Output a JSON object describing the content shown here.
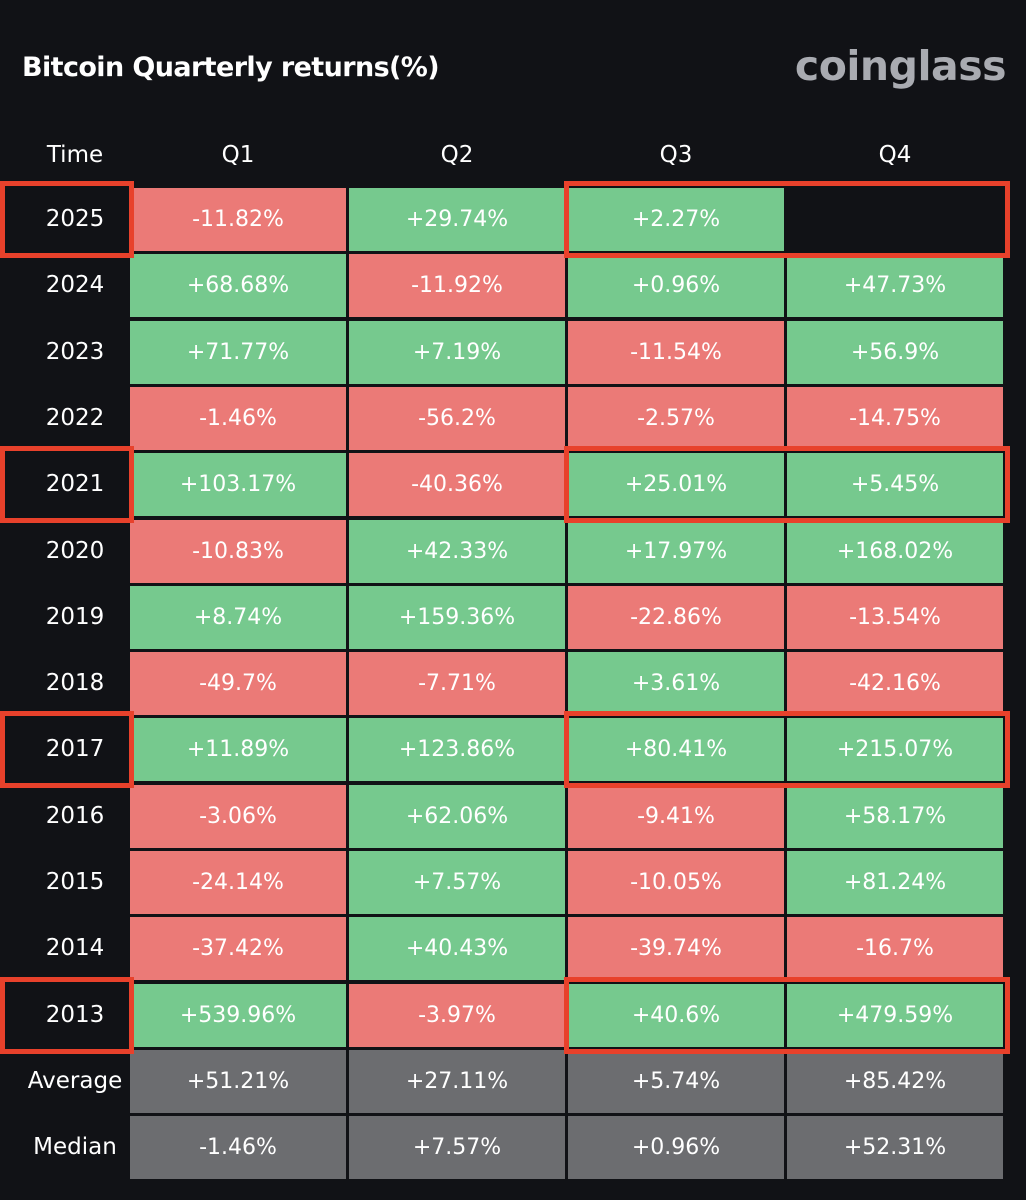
{
  "header": {
    "title": "Bitcoin Quarterly returns(%)",
    "brand": "coinglass"
  },
  "chart_data": {
    "type": "table",
    "title": "Bitcoin Quarterly returns(%)",
    "row_header_label": "Time",
    "columns": [
      "Q1",
      "Q2",
      "Q3",
      "Q4"
    ],
    "rows": [
      {
        "label": "2025",
        "values": [
          "-11.82%",
          "+29.74%",
          "+2.27%",
          ""
        ]
      },
      {
        "label": "2024",
        "values": [
          "+68.68%",
          "-11.92%",
          "+0.96%",
          "+47.73%"
        ]
      },
      {
        "label": "2023",
        "values": [
          "+71.77%",
          "+7.19%",
          "-11.54%",
          "+56.9%"
        ]
      },
      {
        "label": "2022",
        "values": [
          "-1.46%",
          "-56.2%",
          "-2.57%",
          "-14.75%"
        ]
      },
      {
        "label": "2021",
        "values": [
          "+103.17%",
          "-40.36%",
          "+25.01%",
          "+5.45%"
        ]
      },
      {
        "label": "2020",
        "values": [
          "-10.83%",
          "+42.33%",
          "+17.97%",
          "+168.02%"
        ]
      },
      {
        "label": "2019",
        "values": [
          "+8.74%",
          "+159.36%",
          "-22.86%",
          "-13.54%"
        ]
      },
      {
        "label": "2018",
        "values": [
          "-49.7%",
          "-7.71%",
          "+3.61%",
          "-42.16%"
        ]
      },
      {
        "label": "2017",
        "values": [
          "+11.89%",
          "+123.86%",
          "+80.41%",
          "+215.07%"
        ]
      },
      {
        "label": "2016",
        "values": [
          "-3.06%",
          "+62.06%",
          "-9.41%",
          "+58.17%"
        ]
      },
      {
        "label": "2015",
        "values": [
          "-24.14%",
          "+7.57%",
          "-10.05%",
          "+81.24%"
        ]
      },
      {
        "label": "2014",
        "values": [
          "-37.42%",
          "+40.43%",
          "-39.74%",
          "-16.7%"
        ]
      },
      {
        "label": "2013",
        "values": [
          "+539.96%",
          "-3.97%",
          "+40.6%",
          "+479.59%"
        ]
      }
    ],
    "summary_rows": [
      {
        "label": "Average",
        "values": [
          "+51.21%",
          "+27.11%",
          "+5.74%",
          "+85.42%"
        ]
      },
      {
        "label": "Median",
        "values": [
          "-1.46%",
          "+7.57%",
          "+0.96%",
          "+52.31%"
        ]
      }
    ],
    "highlighted_rows": [
      "2025",
      "2021",
      "2017",
      "2013"
    ],
    "highlighted_columns": [
      "Q3",
      "Q4"
    ],
    "colors": {
      "positive": "#76c98e",
      "negative": "#eb7a77",
      "summary": "#6c6d70",
      "empty": "#111216",
      "highlight": "#e8412b",
      "background": "#111216"
    }
  }
}
